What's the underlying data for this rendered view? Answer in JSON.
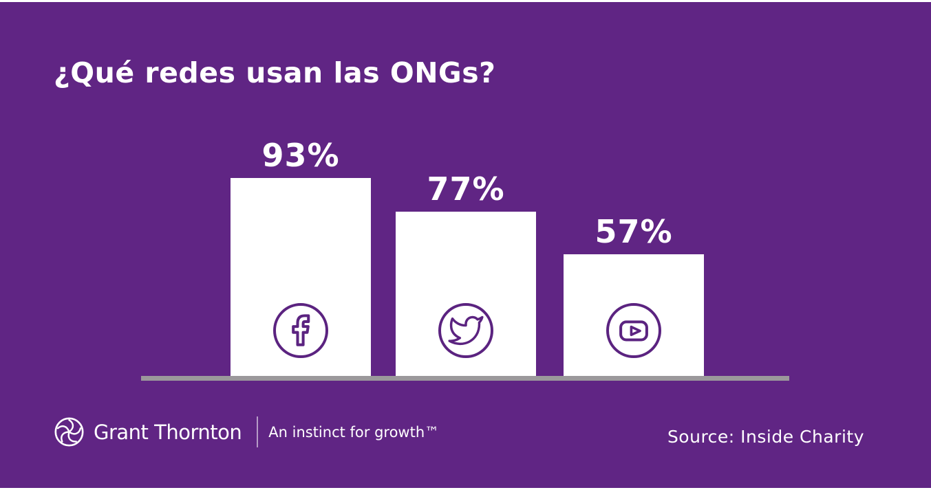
{
  "title": "¿Qué redes usan las ONGs?",
  "chart_data": {
    "type": "bar",
    "title": "¿Qué redes usan las ONGs?",
    "categories": [
      "Facebook",
      "Twitter",
      "YouTube"
    ],
    "values": [
      93,
      77,
      57
    ],
    "labels": [
      "93%",
      "77%",
      "57%"
    ],
    "unit": "%",
    "ylim": [
      0,
      100
    ],
    "grid": false,
    "legend_position": "none",
    "bar_color": "#FFFFFF",
    "icon_color": "#5B2380",
    "baseline_color": "#9B989B",
    "background_color": "#602584"
  },
  "footer": {
    "logo_name": "Grant Thornton",
    "tagline": "An instinct for growth™",
    "source": "Source: Inside Charity"
  },
  "colors": {
    "background": "#602584",
    "text": "#FFFFFF",
    "baseline": "#9B989B"
  }
}
